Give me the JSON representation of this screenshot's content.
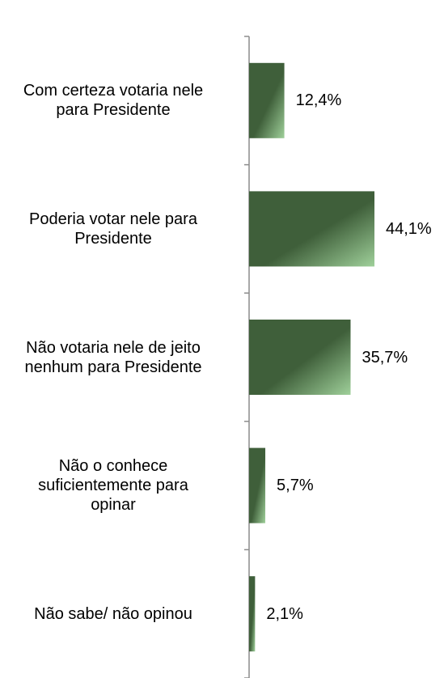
{
  "chart_data": {
    "type": "bar",
    "orientation": "horizontal",
    "categories": [
      "Com certeza votaria nele\npara Presidente",
      "Poderia votar nele para\nPresidente",
      "Não votaria nele de jeito\nnenhum para Presidente",
      "Não o conhece\nsuficientemente para\nopinar",
      "Não sabe/ não opinou"
    ],
    "values": [
      12.4,
      44.1,
      35.7,
      5.7,
      2.1
    ],
    "value_labels": [
      "12,4%",
      "44,1%",
      "35,7%",
      "5,7%",
      "2,1%"
    ],
    "unit": "%",
    "xlim": [
      0,
      70
    ],
    "grid": false,
    "legend": "none",
    "colors": {
      "bar_dark": "#3f5f3a",
      "bar_light": "#9fd09a",
      "axis": "#8c8c8c"
    }
  }
}
